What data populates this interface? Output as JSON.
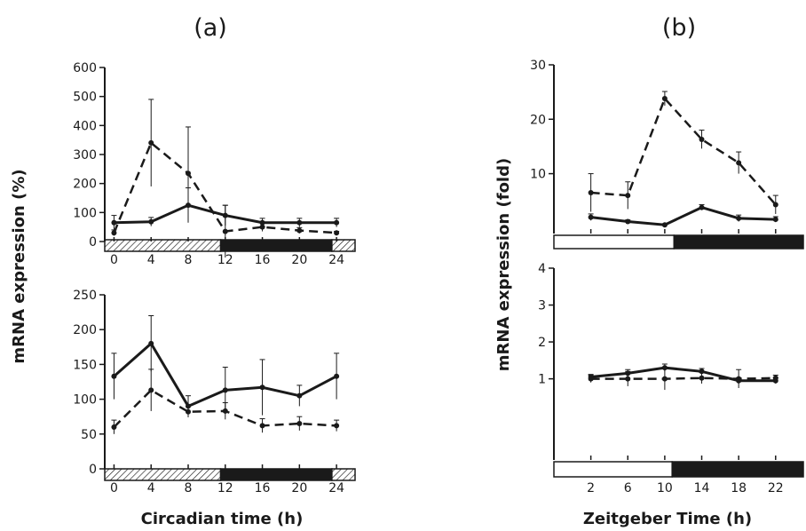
{
  "figure": {
    "panel_a_label": "(a)",
    "panel_b_label": "(b)",
    "left_ylabel": "mRNA expression (%)",
    "right_ylabel": "mRNA expression (fold)",
    "left_xlabel": "Circadian time (h)",
    "right_xlabel": "Zeitgeber Time (h)"
  },
  "colors": {
    "ink": "#1a1a1a",
    "hatch_bg": "#ffffff",
    "dark_bar": "#1a1a1a",
    "light_bar": "#ffffff"
  },
  "chart_data": [
    {
      "id": "a-top",
      "type": "line",
      "x": [
        0,
        4,
        8,
        12,
        16,
        20,
        24
      ],
      "xticks": [
        "0",
        "4",
        "8",
        "12",
        "16",
        "20",
        "24"
      ],
      "yticks": [
        "0",
        "100",
        "200",
        "300",
        "400",
        "500",
        "600"
      ],
      "ylim": [
        0,
        600
      ],
      "xlim": [
        -1,
        26
      ],
      "series": [
        {
          "style": "solid",
          "values": [
            65,
            68,
            125,
            90,
            65,
            65,
            65
          ],
          "err": [
            25,
            15,
            60,
            35,
            15,
            15,
            15
          ]
        },
        {
          "style": "dashed",
          "values": [
            30,
            340,
            235,
            35,
            50,
            38,
            30
          ],
          "err": [
            10,
            150,
            160,
            90,
            15,
            10,
            5
          ]
        }
      ],
      "bar": [
        {
          "from": -1,
          "to": 11.5,
          "kind": "hatched"
        },
        {
          "from": 11.5,
          "to": 23.5,
          "kind": "dark"
        },
        {
          "from": 23.5,
          "to": 26,
          "kind": "hatched"
        }
      ]
    },
    {
      "id": "a-bottom",
      "type": "line",
      "x": [
        0,
        4,
        8,
        12,
        16,
        20,
        24
      ],
      "xticks": [
        "0",
        "4",
        "8",
        "12",
        "16",
        "20",
        "24"
      ],
      "yticks": [
        "0",
        "50",
        "100",
        "150",
        "200",
        "250"
      ],
      "ylim": [
        0,
        250
      ],
      "xlim": [
        -1,
        26
      ],
      "series": [
        {
          "style": "solid",
          "values": [
            133,
            180,
            90,
            113,
            117,
            105,
            133
          ],
          "err": [
            33,
            40,
            15,
            33,
            40,
            15,
            33
          ]
        },
        {
          "style": "dashed",
          "values": [
            60,
            113,
            82,
            83,
            62,
            65,
            62
          ],
          "err": [
            10,
            30,
            8,
            12,
            10,
            10,
            8
          ]
        }
      ],
      "bar": [
        {
          "from": -1,
          "to": 11.5,
          "kind": "hatched"
        },
        {
          "from": 11.5,
          "to": 23.5,
          "kind": "dark"
        },
        {
          "from": 23.5,
          "to": 26,
          "kind": "hatched"
        }
      ]
    },
    {
      "id": "b-top",
      "type": "line",
      "x": [
        2,
        6,
        10,
        14,
        18,
        22
      ],
      "xticks": [],
      "yticks": [
        "10",
        "20",
        "30"
      ],
      "ytick_values": [
        10,
        20,
        30
      ],
      "ylim": [
        -1,
        30
      ],
      "xlim": [
        -2,
        25
      ],
      "series": [
        {
          "style": "solid",
          "values": [
            2,
            1.2,
            0.6,
            3.8,
            1.8,
            1.6
          ],
          "err": [
            0.6,
            0.3,
            0.2,
            0.5,
            0.6,
            0.5
          ]
        },
        {
          "style": "dashed",
          "values": [
            6.5,
            6,
            23.8,
            16.3,
            12,
            4.3
          ],
          "err": [
            3.5,
            2.5,
            1.3,
            1.7,
            2,
            1.7
          ]
        }
      ],
      "bar": [
        {
          "from": -2,
          "to": 11,
          "kind": "light"
        },
        {
          "from": 11,
          "to": 25,
          "kind": "dark"
        }
      ]
    },
    {
      "id": "b-bottom",
      "type": "line",
      "x": [
        2,
        6,
        10,
        14,
        18,
        22
      ],
      "xticks": [
        "2",
        "6",
        "10",
        "14",
        "18",
        "22"
      ],
      "yticks": [
        "1",
        "2",
        "3",
        "4"
      ],
      "ytick_values": [
        1,
        2,
        3,
        4
      ],
      "ylim": [
        -1.2,
        4
      ],
      "xlim": [
        -2,
        25
      ],
      "series": [
        {
          "style": "solid",
          "values": [
            1.05,
            1.15,
            1.3,
            1.2,
            0.95,
            0.95
          ],
          "err": [
            0.07,
            0.1,
            0.1,
            0.08,
            0.08,
            0.08
          ]
        },
        {
          "style": "dashed",
          "values": [
            1.0,
            1.0,
            1.0,
            1.02,
            1.0,
            1.02
          ],
          "err": [
            0.1,
            0.2,
            0.3,
            0.15,
            0.25,
            0.08
          ]
        }
      ],
      "bar": [
        {
          "from": -2,
          "to": 10.8,
          "kind": "light"
        },
        {
          "from": 10.8,
          "to": 25,
          "kind": "dark"
        }
      ]
    }
  ]
}
